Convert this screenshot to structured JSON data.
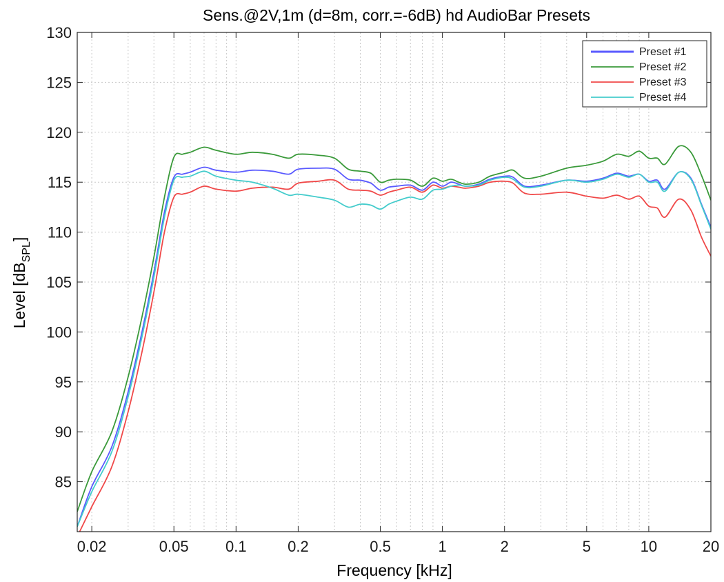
{
  "chart_data": {
    "type": "line",
    "title": "Sens.@2V,1m (d=8m, corr.=-6dB)    hd AudioBar Presets",
    "xlabel": "Frequency [kHz]",
    "ylabel_main": "Level [dB",
    "ylabel_sub": "SPL",
    "ylabel_close": "]",
    "x_scale": "log",
    "xlim": [
      0.017,
      20
    ],
    "ylim": [
      80,
      130
    ],
    "grid": true,
    "legend_position": "top-right",
    "x_ticks": [
      0.02,
      0.05,
      0.1,
      0.2,
      0.5,
      1,
      2,
      5,
      10,
      20
    ],
    "x_tick_labels": [
      "0.02",
      "0.05",
      "0.1",
      "0.2",
      "0.5",
      "1",
      "2",
      "5",
      "10",
      "20"
    ],
    "y_ticks": [
      85,
      90,
      95,
      100,
      105,
      110,
      115,
      120,
      125,
      130
    ],
    "y_tick_labels": [
      "85",
      "90",
      "95",
      "100",
      "105",
      "110",
      "115",
      "120",
      "125",
      "130"
    ],
    "series": [
      {
        "name": "Preset #1",
        "color": "#5a5aff",
        "x": [
          0.017,
          0.02,
          0.025,
          0.03,
          0.035,
          0.04,
          0.045,
          0.05,
          0.055,
          0.06,
          0.07,
          0.08,
          0.1,
          0.12,
          0.15,
          0.18,
          0.2,
          0.25,
          0.3,
          0.35,
          0.4,
          0.45,
          0.5,
          0.55,
          0.6,
          0.7,
          0.8,
          0.9,
          1.0,
          1.1,
          1.2,
          1.3,
          1.5,
          1.7,
          2.0,
          2.2,
          2.5,
          3.0,
          4.0,
          5.0,
          6.0,
          7.0,
          8.0,
          9.0,
          10.0,
          11.0,
          12.0,
          14.0,
          16.0,
          18.0,
          20.0
        ],
        "y": [
          80.5,
          84.5,
          88.5,
          94,
          100,
          106,
          112,
          115.5,
          115.8,
          116,
          116.5,
          116.2,
          116,
          116.2,
          116.1,
          115.8,
          116.3,
          116.4,
          116.3,
          115.3,
          115.2,
          114.9,
          114.2,
          114.5,
          114.6,
          114.7,
          114.2,
          115,
          114.6,
          115,
          114.8,
          114.6,
          114.8,
          115.3,
          115.6,
          115.5,
          114.6,
          114.7,
          115.2,
          115.1,
          115.4,
          115.9,
          115.6,
          115.8,
          115.1,
          115.2,
          114.3,
          116,
          115.4,
          112.8,
          110.5
        ]
      },
      {
        "name": "Preset #2",
        "color": "#3a9a3a",
        "x": [
          0.017,
          0.02,
          0.025,
          0.03,
          0.035,
          0.04,
          0.045,
          0.05,
          0.055,
          0.06,
          0.07,
          0.08,
          0.1,
          0.12,
          0.15,
          0.18,
          0.2,
          0.25,
          0.3,
          0.35,
          0.4,
          0.45,
          0.5,
          0.55,
          0.6,
          0.7,
          0.8,
          0.9,
          1.0,
          1.1,
          1.2,
          1.3,
          1.5,
          1.7,
          2.0,
          2.2,
          2.5,
          3.0,
          4.0,
          5.0,
          6.0,
          7.0,
          8.0,
          9.0,
          10.0,
          11.0,
          12.0,
          14.0,
          16.0,
          18.0,
          20.0
        ],
        "y": [
          82,
          86,
          90,
          95.5,
          101.5,
          107.5,
          113.5,
          117.5,
          117.8,
          118,
          118.5,
          118.2,
          117.8,
          118,
          117.8,
          117.4,
          117.8,
          117.7,
          117.4,
          116.3,
          116.1,
          115.9,
          115,
          115.2,
          115.3,
          115.2,
          114.6,
          115.4,
          115.1,
          115.3,
          115,
          114.8,
          115,
          115.6,
          116,
          116.2,
          115.4,
          115.6,
          116.4,
          116.7,
          117.1,
          117.8,
          117.6,
          118.1,
          117.4,
          117.4,
          116.8,
          118.6,
          118,
          115.7,
          113.2
        ]
      },
      {
        "name": "Preset #3",
        "color": "#f04848",
        "x": [
          0.017,
          0.02,
          0.025,
          0.03,
          0.035,
          0.04,
          0.045,
          0.05,
          0.055,
          0.06,
          0.07,
          0.08,
          0.1,
          0.12,
          0.15,
          0.18,
          0.2,
          0.25,
          0.3,
          0.35,
          0.4,
          0.45,
          0.5,
          0.55,
          0.6,
          0.7,
          0.8,
          0.9,
          1.0,
          1.1,
          1.2,
          1.3,
          1.5,
          1.7,
          2.0,
          2.2,
          2.5,
          3.0,
          4.0,
          5.0,
          6.0,
          7.0,
          8.0,
          9.0,
          10.0,
          11.0,
          12.0,
          14.0,
          16.0,
          18.0,
          20.0
        ],
        "y": [
          79.5,
          82.5,
          86.5,
          92,
          98,
          104,
          110,
          113.5,
          113.8,
          114,
          114.6,
          114.3,
          114.1,
          114.4,
          114.5,
          114.3,
          114.9,
          115.1,
          115.2,
          114.3,
          114.2,
          114.1,
          113.7,
          114,
          114.2,
          114.5,
          114,
          114.7,
          114.4,
          114.6,
          114.5,
          114.4,
          114.6,
          115,
          115.1,
          114.9,
          113.9,
          113.8,
          114,
          113.6,
          113.4,
          113.7,
          113.3,
          113.6,
          112.6,
          112.4,
          111.5,
          113.3,
          112.2,
          109.5,
          107.6
        ]
      },
      {
        "name": "Preset #4",
        "color": "#44cccc",
        "x": [
          0.017,
          0.02,
          0.025,
          0.03,
          0.035,
          0.04,
          0.045,
          0.05,
          0.055,
          0.06,
          0.07,
          0.08,
          0.1,
          0.12,
          0.15,
          0.18,
          0.2,
          0.25,
          0.3,
          0.35,
          0.4,
          0.45,
          0.5,
          0.55,
          0.6,
          0.7,
          0.8,
          0.9,
          1.0,
          1.1,
          1.2,
          1.3,
          1.5,
          1.7,
          2.0,
          2.2,
          2.5,
          3.0,
          4.0,
          5.0,
          6.0,
          7.0,
          8.0,
          9.0,
          10.0,
          11.0,
          12.0,
          14.0,
          16.0,
          18.0,
          20.0
        ],
        "y": [
          80.5,
          84,
          88,
          93.5,
          99.5,
          105.5,
          111.5,
          115.2,
          115.5,
          115.6,
          116.1,
          115.6,
          115.2,
          115,
          114.4,
          113.7,
          113.8,
          113.5,
          113.2,
          112.5,
          112.8,
          112.7,
          112.3,
          112.8,
          113.1,
          113.5,
          113.3,
          114.2,
          114.3,
          114.6,
          114.7,
          114.6,
          114.7,
          115.2,
          115.5,
          115.3,
          114.5,
          114.6,
          115.2,
          115,
          115.3,
          115.8,
          115.5,
          115.8,
          115,
          115,
          114.1,
          116,
          115.3,
          112.7,
          110.3
        ]
      }
    ]
  }
}
